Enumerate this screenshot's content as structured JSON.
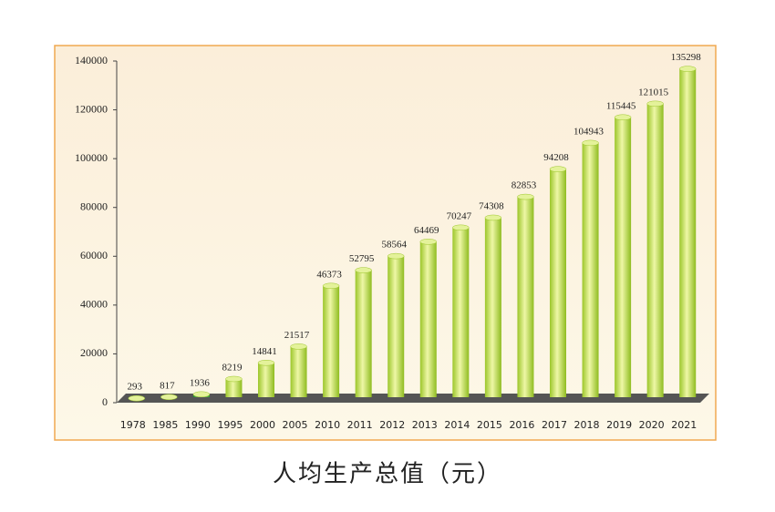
{
  "chart_data": {
    "type": "bar",
    "title": "人均生产总值（元）",
    "categories": [
      "1978",
      "1985",
      "1990",
      "1995",
      "2000",
      "2005",
      "2010",
      "2011",
      "2012",
      "2013",
      "2014",
      "2015",
      "2016",
      "2017",
      "2018",
      "2019",
      "2020",
      "2021"
    ],
    "values": [
      293,
      817,
      1936,
      8219,
      14841,
      21517,
      46373,
      52795,
      58564,
      64469,
      70247,
      74308,
      82853,
      94208,
      104943,
      115445,
      121015,
      135298
    ],
    "color": "#c8e04a",
    "ylim": [
      0,
      140000
    ],
    "yticks": [
      0,
      20000,
      40000,
      60000,
      80000,
      100000,
      120000,
      140000
    ]
  }
}
